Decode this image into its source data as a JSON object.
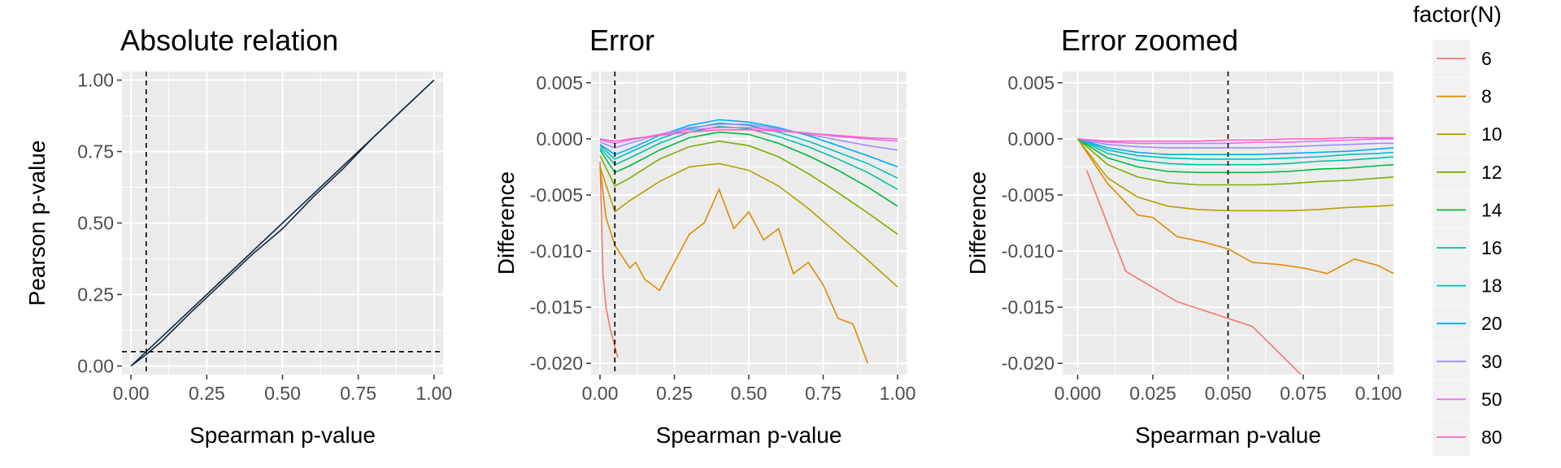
{
  "chart_data": [
    {
      "type": "line",
      "title": "Absolute relation",
      "xlabel": "Spearman p-value",
      "ylabel": "Pearson p-value",
      "xlim": [
        -0.03,
        1.03
      ],
      "ylim": [
        -0.03,
        1.03
      ],
      "xticks": [
        0,
        0.25,
        0.5,
        0.75,
        1.0
      ],
      "xtick_labels": [
        "0.00",
        "0.25",
        "0.50",
        "0.75",
        "1.00"
      ],
      "yticks": [
        0,
        0.25,
        0.5,
        0.75,
        1.0
      ],
      "ytick_labels": [
        "0.00",
        "0.25",
        "0.50",
        "0.75",
        "1.00"
      ],
      "grid": true,
      "reference_lines": [
        {
          "axis": "x",
          "value": 0.05
        },
        {
          "axis": "y",
          "value": 0.05
        }
      ],
      "series": [
        {
          "name": "6",
          "x": [
            0,
            0.05,
            0.1,
            0.2,
            0.3,
            0.4,
            0.5,
            0.6,
            0.7,
            0.8,
            0.9,
            1.0
          ],
          "y": [
            0,
            0.04,
            0.085,
            0.19,
            0.29,
            0.39,
            0.48,
            0.59,
            0.69,
            0.8,
            0.9,
            1.0
          ]
        },
        {
          "name": "80",
          "x": [
            0,
            0.25,
            0.5,
            0.75,
            1.0
          ],
          "y": [
            0,
            0.25,
            0.5,
            0.75,
            1.0
          ]
        }
      ]
    },
    {
      "type": "line",
      "title": "Error",
      "xlabel": "Spearman p-value",
      "ylabel": "Difference",
      "xlim": [
        -0.03,
        1.03
      ],
      "ylim": [
        -0.021,
        0.006
      ],
      "xticks": [
        0,
        0.25,
        0.5,
        0.75,
        1.0
      ],
      "xtick_labels": [
        "0.00",
        "0.25",
        "0.50",
        "0.75",
        "1.00"
      ],
      "yticks": [
        0.005,
        0,
        -0.005,
        -0.01,
        -0.015,
        -0.02
      ],
      "ytick_labels": [
        "0.005",
        "0.000",
        "-0.005",
        "-0.010",
        "-0.015",
        "-0.020"
      ],
      "grid": true,
      "reference_lines": [
        {
          "axis": "x",
          "value": 0.05
        }
      ],
      "series": [
        {
          "name": "6",
          "x": [
            0,
            0.01,
            0.02,
            0.035,
            0.06
          ],
          "y": [
            -0.002,
            -0.012,
            -0.015,
            -0.017,
            -0.0195
          ]
        },
        {
          "name": "8",
          "x": [
            0,
            0.02,
            0.05,
            0.1,
            0.12,
            0.15,
            0.2,
            0.25,
            0.3,
            0.35,
            0.4,
            0.45,
            0.5,
            0.55,
            0.6,
            0.65,
            0.7,
            0.75,
            0.8,
            0.85,
            0.9
          ],
          "y": [
            -0.0025,
            -0.007,
            -0.0095,
            -0.0115,
            -0.011,
            -0.0125,
            -0.0135,
            -0.011,
            -0.0085,
            -0.0075,
            -0.0045,
            -0.008,
            -0.0065,
            -0.009,
            -0.008,
            -0.012,
            -0.011,
            -0.013,
            -0.016,
            -0.0165,
            -0.02
          ]
        },
        {
          "name": "10",
          "x": [
            0,
            0.05,
            0.1,
            0.2,
            0.3,
            0.4,
            0.5,
            0.6,
            0.7,
            0.8,
            0.9,
            1.0
          ],
          "y": [
            -0.0025,
            -0.0065,
            -0.0055,
            -0.0038,
            -0.0025,
            -0.0022,
            -0.0028,
            -0.0042,
            -0.0062,
            -0.0085,
            -0.0108,
            -0.0132
          ]
        },
        {
          "name": "12",
          "x": [
            0,
            0.05,
            0.1,
            0.2,
            0.3,
            0.4,
            0.5,
            0.6,
            0.7,
            0.8,
            0.9,
            1.0
          ],
          "y": [
            -0.0015,
            -0.0042,
            -0.0035,
            -0.0018,
            -0.0007,
            -0.0002,
            -0.0006,
            -0.0016,
            -0.0031,
            -0.0048,
            -0.0066,
            -0.0085
          ]
        },
        {
          "name": "14",
          "x": [
            0,
            0.05,
            0.1,
            0.2,
            0.3,
            0.4,
            0.5,
            0.6,
            0.7,
            0.8,
            0.9,
            1.0
          ],
          "y": [
            -0.001,
            -0.003,
            -0.0024,
            -0.001,
            0.0001,
            0.0006,
            0.0004,
            -0.0004,
            -0.0015,
            -0.0028,
            -0.0043,
            -0.006
          ]
        },
        {
          "name": "16",
          "x": [
            0,
            0.05,
            0.1,
            0.2,
            0.3,
            0.4,
            0.5,
            0.6,
            0.7,
            0.8,
            0.9,
            1.0
          ],
          "y": [
            -0.0008,
            -0.0023,
            -0.0017,
            -0.0004,
            0.0006,
            0.0011,
            0.0009,
            0.0002,
            -0.0007,
            -0.0018,
            -0.003,
            -0.0045
          ]
        },
        {
          "name": "18",
          "x": [
            0,
            0.05,
            0.1,
            0.2,
            0.3,
            0.4,
            0.5,
            0.6,
            0.7,
            0.8,
            0.9,
            1.0
          ],
          "y": [
            -0.0006,
            -0.0018,
            -0.0012,
            0.0,
            0.0009,
            0.0014,
            0.0012,
            0.0006,
            -0.0002,
            -0.0012,
            -0.0022,
            -0.0035
          ]
        },
        {
          "name": "20",
          "x": [
            0,
            0.05,
            0.1,
            0.2,
            0.3,
            0.4,
            0.5,
            0.6,
            0.7,
            0.8,
            0.9,
            1.0
          ],
          "y": [
            -0.0005,
            -0.0014,
            -0.0009,
            0.0003,
            0.0012,
            0.0017,
            0.0015,
            0.001,
            0.0003,
            -0.0006,
            -0.0015,
            -0.0025
          ]
        },
        {
          "name": "30",
          "x": [
            0,
            0.05,
            0.1,
            0.2,
            0.3,
            0.4,
            0.5,
            0.6,
            0.7,
            0.8,
            0.9,
            1.0
          ],
          "y": [
            -0.0003,
            -0.0008,
            -0.0004,
            0.0004,
            0.001,
            0.0013,
            0.0013,
            0.0009,
            0.0004,
            -0.0001,
            -0.0006,
            -0.001
          ]
        },
        {
          "name": "50",
          "x": [
            0,
            0.05,
            0.1,
            0.2,
            0.3,
            0.4,
            0.5,
            0.6,
            0.7,
            0.8,
            0.9,
            1.0
          ],
          "y": [
            -0.0001,
            -0.0004,
            -0.0001,
            0.0004,
            0.0008,
            0.001,
            0.001,
            0.0008,
            0.0005,
            0.0002,
            0.0,
            -0.0002
          ]
        },
        {
          "name": "80",
          "x": [
            0,
            0.05,
            0.1,
            0.2,
            0.3,
            0.4,
            0.5,
            0.6,
            0.7,
            0.8,
            0.9,
            1.0
          ],
          "y": [
            0.0,
            -0.0002,
            0.0,
            0.0003,
            0.0006,
            0.0008,
            0.0008,
            0.0007,
            0.0005,
            0.0003,
            0.0001,
            0.0
          ]
        }
      ]
    },
    {
      "type": "line",
      "title": "Error zoomed",
      "xlabel": "Spearman p-value",
      "ylabel": "Difference",
      "xlim": [
        -0.005,
        0.105
      ],
      "ylim": [
        -0.021,
        0.006
      ],
      "xticks": [
        0,
        0.025,
        0.05,
        0.075,
        0.1
      ],
      "xtick_labels": [
        "0.000",
        "0.025",
        "0.050",
        "0.075",
        "0.100"
      ],
      "yticks": [
        0.005,
        0,
        -0.005,
        -0.01,
        -0.015,
        -0.02
      ],
      "ytick_labels": [
        "0.005",
        "0.000",
        "-0.005",
        "-0.010",
        "-0.015",
        "-0.020"
      ],
      "grid": true,
      "reference_lines": [
        {
          "axis": "x",
          "value": 0.05
        }
      ],
      "series": [
        {
          "name": "6",
          "x": [
            0.003,
            0.016,
            0.033,
            0.05,
            0.058,
            0.075
          ],
          "y": [
            -0.0028,
            -0.0118,
            -0.0145,
            -0.016,
            -0.0167,
            -0.0212
          ]
        },
        {
          "name": "8",
          "x": [
            0,
            0.01,
            0.02,
            0.025,
            0.033,
            0.042,
            0.05,
            0.058,
            0.067,
            0.075,
            0.083,
            0.092,
            0.1,
            0.105
          ],
          "y": [
            0,
            -0.004,
            -0.0068,
            -0.007,
            -0.0087,
            -0.0092,
            -0.0098,
            -0.011,
            -0.0112,
            -0.0115,
            -0.012,
            -0.0107,
            -0.0113,
            -0.012
          ]
        },
        {
          "name": "10",
          "x": [
            0,
            0.01,
            0.02,
            0.03,
            0.04,
            0.05,
            0.06,
            0.07,
            0.08,
            0.09,
            0.1,
            0.105
          ],
          "y": [
            0,
            -0.0035,
            -0.0052,
            -0.006,
            -0.0063,
            -0.0064,
            -0.0064,
            -0.0064,
            -0.0063,
            -0.0061,
            -0.006,
            -0.0059
          ]
        },
        {
          "name": "12",
          "x": [
            0,
            0.01,
            0.02,
            0.03,
            0.04,
            0.05,
            0.06,
            0.07,
            0.08,
            0.09,
            0.1,
            0.105
          ],
          "y": [
            0,
            -0.0023,
            -0.0034,
            -0.0039,
            -0.0041,
            -0.0041,
            -0.0041,
            -0.004,
            -0.0038,
            -0.0037,
            -0.0035,
            -0.0034
          ]
        },
        {
          "name": "14",
          "x": [
            0,
            0.01,
            0.02,
            0.03,
            0.04,
            0.05,
            0.06,
            0.07,
            0.08,
            0.09,
            0.1,
            0.105
          ],
          "y": [
            0,
            -0.0017,
            -0.0025,
            -0.0029,
            -0.003,
            -0.003,
            -0.003,
            -0.0029,
            -0.0027,
            -0.0026,
            -0.0024,
            -0.0023
          ]
        },
        {
          "name": "16",
          "x": [
            0,
            0.01,
            0.02,
            0.03,
            0.04,
            0.05,
            0.06,
            0.07,
            0.08,
            0.09,
            0.1,
            0.105
          ],
          "y": [
            0,
            -0.0013,
            -0.0019,
            -0.0022,
            -0.0023,
            -0.0023,
            -0.0023,
            -0.0022,
            -0.002,
            -0.0019,
            -0.0017,
            -0.0016
          ]
        },
        {
          "name": "18",
          "x": [
            0,
            0.01,
            0.02,
            0.03,
            0.04,
            0.05,
            0.06,
            0.07,
            0.08,
            0.09,
            0.1,
            0.105
          ],
          "y": [
            0,
            -0.001,
            -0.0015,
            -0.0017,
            -0.0018,
            -0.0018,
            -0.0018,
            -0.0017,
            -0.0016,
            -0.0014,
            -0.0013,
            -0.0012
          ]
        },
        {
          "name": "20",
          "x": [
            0,
            0.01,
            0.02,
            0.03,
            0.04,
            0.05,
            0.06,
            0.07,
            0.08,
            0.09,
            0.1,
            0.105
          ],
          "y": [
            0,
            -0.0008,
            -0.0012,
            -0.0014,
            -0.0014,
            -0.0014,
            -0.0014,
            -0.0013,
            -0.0012,
            -0.0011,
            -0.0009,
            -0.0008
          ]
        },
        {
          "name": "30",
          "x": [
            0,
            0.01,
            0.02,
            0.03,
            0.04,
            0.05,
            0.06,
            0.07,
            0.08,
            0.09,
            0.1,
            0.105
          ],
          "y": [
            0,
            -0.0005,
            -0.0007,
            -0.0008,
            -0.0008,
            -0.0008,
            -0.0008,
            -0.0007,
            -0.0006,
            -0.0005,
            -0.0004,
            -0.0004
          ]
        },
        {
          "name": "50",
          "x": [
            0,
            0.01,
            0.02,
            0.03,
            0.04,
            0.05,
            0.06,
            0.07,
            0.08,
            0.09,
            0.1,
            0.105
          ],
          "y": [
            0,
            -0.0003,
            -0.0004,
            -0.0004,
            -0.0004,
            -0.0004,
            -0.0003,
            -0.0003,
            -0.0002,
            -0.0001,
            0.0,
            0.0
          ]
        },
        {
          "name": "80",
          "x": [
            0,
            0.01,
            0.02,
            0.03,
            0.04,
            0.05,
            0.06,
            0.07,
            0.08,
            0.09,
            0.1,
            0.105
          ],
          "y": [
            0,
            -0.0002,
            -0.0002,
            -0.0002,
            -0.0002,
            -0.0001,
            -0.0001,
            0.0,
            0.0,
            0.0001,
            0.0001,
            0.0001
          ]
        }
      ]
    }
  ],
  "legend": {
    "title": "factor(N)",
    "position": "right",
    "items": [
      {
        "label": "6",
        "color": "#F8766D"
      },
      {
        "label": "8",
        "color": "#DE8C00"
      },
      {
        "label": "10",
        "color": "#B79F00"
      },
      {
        "label": "12",
        "color": "#7CAE00"
      },
      {
        "label": "14",
        "color": "#00BA38"
      },
      {
        "label": "16",
        "color": "#00C1A3"
      },
      {
        "label": "18",
        "color": "#00BFC4"
      },
      {
        "label": "20",
        "color": "#00A9FF"
      },
      {
        "label": "30",
        "color": "#9F8CFF"
      },
      {
        "label": "50",
        "color": "#E76BF3"
      },
      {
        "label": "80",
        "color": "#FF62BC"
      }
    ]
  },
  "colors": {
    "panel_bg": "#EBEBEB",
    "grid": "#FFFFFF",
    "absolute_line": "#132B43",
    "reference": "#000000"
  }
}
